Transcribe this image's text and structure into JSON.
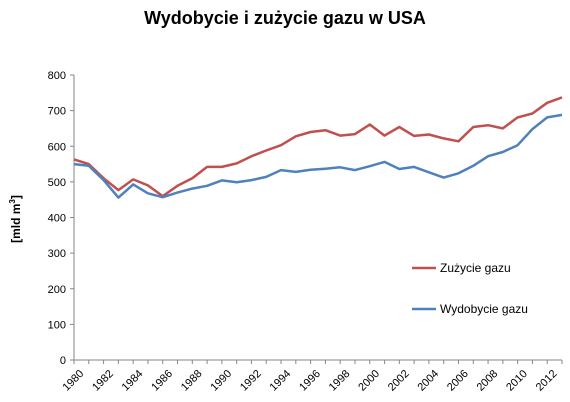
{
  "chart_data": {
    "type": "line",
    "title": "Wydobycie i zużycie gazu w USA",
    "xlabel": "",
    "ylabel": "[mld m3]",
    "ylabel_main": "[mld m",
    "ylabel_sup": "3",
    "ylabel_close": "]",
    "ylim": [
      0,
      800
    ],
    "yticks": [
      "0",
      "100",
      "200",
      "300",
      "400",
      "500",
      "600",
      "700",
      "800"
    ],
    "xticks": [
      "1980",
      "1982",
      "1984",
      "1986",
      "1988",
      "1990",
      "1992",
      "1994",
      "1996",
      "1998",
      "2000",
      "2002",
      "2004",
      "2006",
      "2008",
      "2010",
      "2012"
    ],
    "x": [
      1980,
      1981,
      1982,
      1983,
      1984,
      1985,
      1986,
      1987,
      1988,
      1989,
      1990,
      1991,
      1992,
      1993,
      1994,
      1995,
      1996,
      1997,
      1998,
      1999,
      2000,
      2001,
      2002,
      2003,
      2004,
      2005,
      2006,
      2007,
      2008,
      2009,
      2010,
      2011,
      2012,
      2013
    ],
    "grid": false,
    "legend_position": "right",
    "series": [
      {
        "name": "Zużycie gazu",
        "color": "#c0504d",
        "values": [
          563,
          550,
          510,
          477,
          507,
          490,
          460,
          489,
          510,
          542,
          542,
          552,
          572,
          588,
          603,
          628,
          640,
          645,
          630,
          634,
          661,
          630,
          654,
          629,
          633,
          622,
          614,
          654,
          659,
          650,
          681,
          692,
          722,
          737
        ]
      },
      {
        "name": "Wydobycie gazu",
        "color": "#4f81bd",
        "values": [
          550,
          545,
          505,
          456,
          493,
          468,
          457,
          470,
          481,
          489,
          504,
          499,
          505,
          514,
          533,
          528,
          534,
          537,
          541,
          533,
          544,
          556,
          536,
          542,
          527,
          512,
          524,
          545,
          572,
          584,
          603,
          648,
          681,
          688
        ]
      }
    ]
  }
}
